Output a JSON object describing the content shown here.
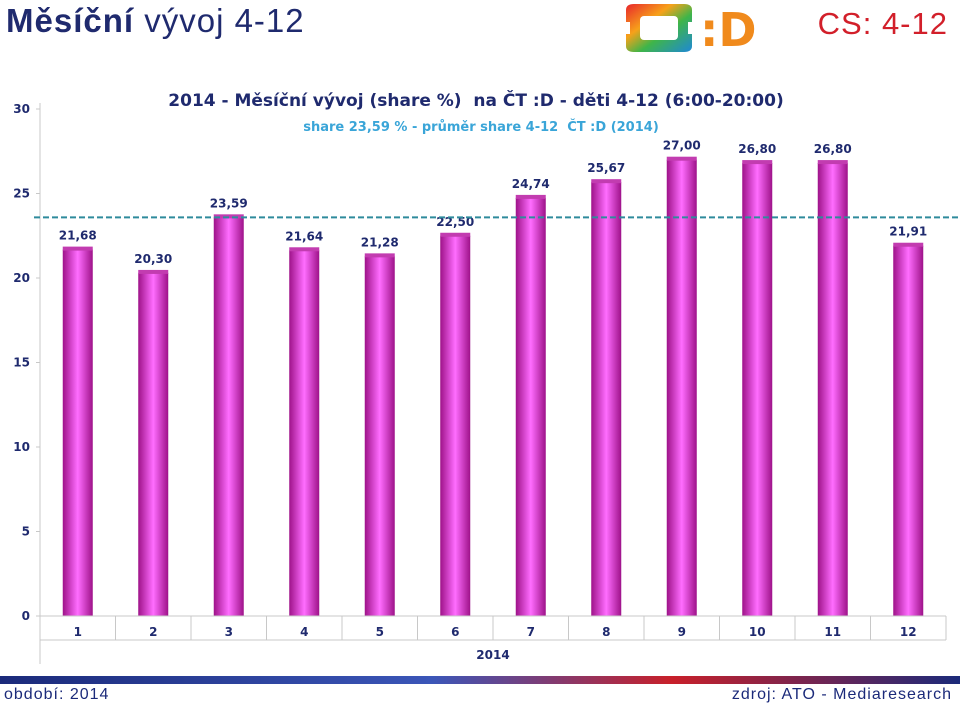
{
  "header": {
    "title_bold": "Měsíční",
    "title_rest": " vývoj 4-12",
    "cs_label": "CS: 4-12",
    "logo_text": ":D"
  },
  "footer": {
    "period": "období: 2014",
    "source": "zdroj: ATO - Mediaresearch"
  },
  "colors": {
    "bar_edge": "#a3148e",
    "bar_center": "#ff6bff",
    "avg_line": "#2e8b9c",
    "title_navy": "#1f2a6e",
    "subtitle_blue": "#3aa5d8",
    "accent_red": "#d21f2a"
  },
  "chart_data": {
    "type": "bar",
    "title": "2014 - Měsíční vývoj (share %)  na ČT :D - děti 4-12 (6:00-20:00)",
    "subtitle": "share 23,59 % - průměr share 4-12  ČT :D (2014)",
    "xlabel": "2014",
    "categories": [
      "1",
      "2",
      "3",
      "4",
      "5",
      "6",
      "7",
      "8",
      "9",
      "10",
      "11",
      "12"
    ],
    "values": [
      21.68,
      20.3,
      23.59,
      21.64,
      21.28,
      22.5,
      24.74,
      25.67,
      27.0,
      26.8,
      26.8,
      21.91
    ],
    "value_labels": [
      "21,68",
      "20,30",
      "23,59",
      "21,64",
      "21,28",
      "22,50",
      "24,74",
      "25,67",
      "27,00",
      "26,80",
      "26,80",
      "21,91"
    ],
    "ylim": [
      0,
      30
    ],
    "yticks": [
      0,
      5,
      10,
      15,
      20,
      25,
      30
    ],
    "average_line": 23.59,
    "grid": false,
    "legend": "none"
  }
}
